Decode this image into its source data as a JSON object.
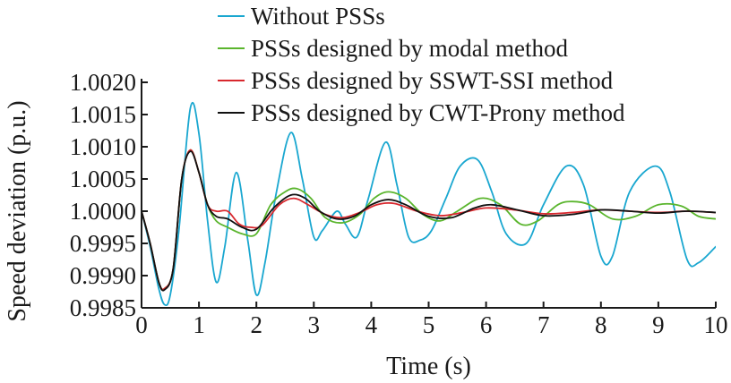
{
  "chart_data": {
    "type": "line",
    "title": "",
    "xlabel": "Time (s)",
    "ylabel": "Speed deviation (p.u.)",
    "xlim": [
      0,
      10
    ],
    "ylim": [
      0.9985,
      1.002
    ],
    "xticks": [
      0,
      1,
      2,
      3,
      4,
      5,
      6,
      7,
      8,
      9,
      10
    ],
    "xtick_labels": [
      "0",
      "1",
      "2",
      "3",
      "4",
      "5",
      "6",
      "7",
      "8",
      "9",
      "10"
    ],
    "yticks": [
      0.9985,
      0.999,
      0.9995,
      1.0,
      1.0005,
      1.001,
      1.0015,
      1.002
    ],
    "ytick_labels": [
      "0.9985",
      "0.9990",
      "0.9995",
      "1.0000",
      "1.0005",
      "1.0010",
      "1.0015",
      "1.0020"
    ],
    "grid": false,
    "legend_position": "top-right",
    "series": [
      {
        "name": "Without PSSs",
        "color": "#1aa7d0",
        "x": [
          0,
          0.15,
          0.3,
          0.4,
          0.5,
          0.65,
          0.85,
          1.0,
          1.15,
          1.3,
          1.45,
          1.65,
          1.85,
          2.0,
          2.15,
          2.35,
          2.6,
          2.8,
          3.0,
          3.15,
          3.4,
          3.55,
          3.75,
          3.95,
          4.25,
          4.45,
          4.65,
          4.85,
          5.05,
          5.3,
          5.55,
          5.85,
          6.1,
          6.35,
          6.7,
          7.0,
          7.4,
          7.7,
          8.0,
          8.2,
          8.5,
          8.95,
          9.2,
          9.5,
          9.7,
          10.0
        ],
        "y": [
          1.0,
          0.99945,
          0.9988,
          0.99855,
          0.9987,
          0.9997,
          1.0016,
          1.0012,
          0.99985,
          0.9989,
          0.99945,
          1.0006,
          0.99955,
          0.9987,
          0.9992,
          1.0003,
          1.00122,
          1.0005,
          0.9996,
          0.9997,
          1.0,
          0.9998,
          0.9996,
          1.0002,
          1.00107,
          1.0004,
          0.9996,
          0.99955,
          0.9997,
          1.0002,
          1.0007,
          1.0008,
          1.0003,
          0.99965,
          0.9995,
          1.0001,
          1.0007,
          1.0004,
          0.9993,
          0.9993,
          1.0003,
          1.0007,
          1.0003,
          0.99925,
          0.9992,
          0.99945
        ]
      },
      {
        "name": "PSSs designed by modal method",
        "color": "#5ab52d",
        "x": [
          0,
          0.15,
          0.3,
          0.4,
          0.55,
          0.7,
          0.85,
          1.0,
          1.15,
          1.3,
          1.5,
          1.75,
          2.0,
          2.25,
          2.5,
          2.7,
          2.95,
          3.2,
          3.5,
          3.8,
          4.05,
          4.3,
          4.6,
          4.9,
          5.2,
          5.5,
          5.9,
          6.25,
          6.6,
          6.9,
          7.25,
          7.5,
          7.8,
          8.2,
          8.6,
          9.0,
          9.4,
          9.7,
          10.0
        ],
        "y": [
          1.0,
          0.9995,
          0.9989,
          0.9988,
          0.9991,
          1.0005,
          1.00095,
          1.0006,
          1.0001,
          0.99985,
          0.99975,
          0.99965,
          0.99965,
          1.0001,
          1.0003,
          1.00035,
          1.0002,
          0.9999,
          0.99982,
          0.99995,
          1.0002,
          1.0003,
          1.0002,
          0.99995,
          0.99985,
          1.0,
          1.0002,
          1.0001,
          0.9998,
          0.99985,
          1.0001,
          1.00015,
          1.0001,
          0.99988,
          0.99992,
          1.0001,
          1.00008,
          0.99992,
          0.99988
        ]
      },
      {
        "name": "PSSs designed by SSWT-SSI method",
        "color": "#d8282e",
        "x": [
          0,
          0.15,
          0.3,
          0.4,
          0.55,
          0.7,
          0.85,
          1.0,
          1.15,
          1.3,
          1.5,
          1.7,
          1.9,
          2.1,
          2.4,
          2.65,
          2.9,
          3.2,
          3.5,
          3.8,
          4.1,
          4.4,
          4.8,
          5.2,
          5.6,
          6.0,
          6.5,
          7.0,
          7.5,
          8.0,
          8.5,
          9.0,
          9.5,
          10.0
        ],
        "y": [
          1.0,
          0.9995,
          0.9989,
          0.9988,
          0.9991,
          1.0005,
          1.00095,
          1.0006,
          1.0001,
          1.0,
          1.0,
          0.9998,
          0.99975,
          0.99978,
          1.0001,
          1.0002,
          1.0001,
          0.99995,
          0.9999,
          0.99998,
          1.0001,
          1.00012,
          1.0,
          0.99993,
          0.99998,
          1.00005,
          1.00002,
          0.99996,
          0.99998,
          1.00002,
          1.0,
          0.99998,
          1.0,
          0.99998
        ]
      },
      {
        "name": "PSSs designed by CWT-Prony method",
        "color": "#111111",
        "x": [
          0,
          0.15,
          0.3,
          0.4,
          0.55,
          0.7,
          0.85,
          1.0,
          1.15,
          1.3,
          1.5,
          1.75,
          2.0,
          2.3,
          2.6,
          2.85,
          3.1,
          3.4,
          3.7,
          4.0,
          4.3,
          4.6,
          5.0,
          5.4,
          5.8,
          6.1,
          6.5,
          7.0,
          7.5,
          8.0,
          8.5,
          9.0,
          9.5,
          10.0
        ],
        "y": [
          1.0,
          0.9995,
          0.9989,
          0.99878,
          0.9991,
          1.0005,
          1.00093,
          1.0006,
          1.0001,
          0.99992,
          0.99988,
          0.99975,
          0.99972,
          1.00005,
          1.00025,
          1.0002,
          1.0,
          0.99988,
          0.99992,
          1.0001,
          1.00018,
          1.0001,
          0.99992,
          0.9999,
          1.00005,
          1.0001,
          1.00003,
          0.99993,
          0.99995,
          1.00002,
          1.0,
          0.99997,
          1.0,
          0.99998
        ]
      }
    ]
  }
}
